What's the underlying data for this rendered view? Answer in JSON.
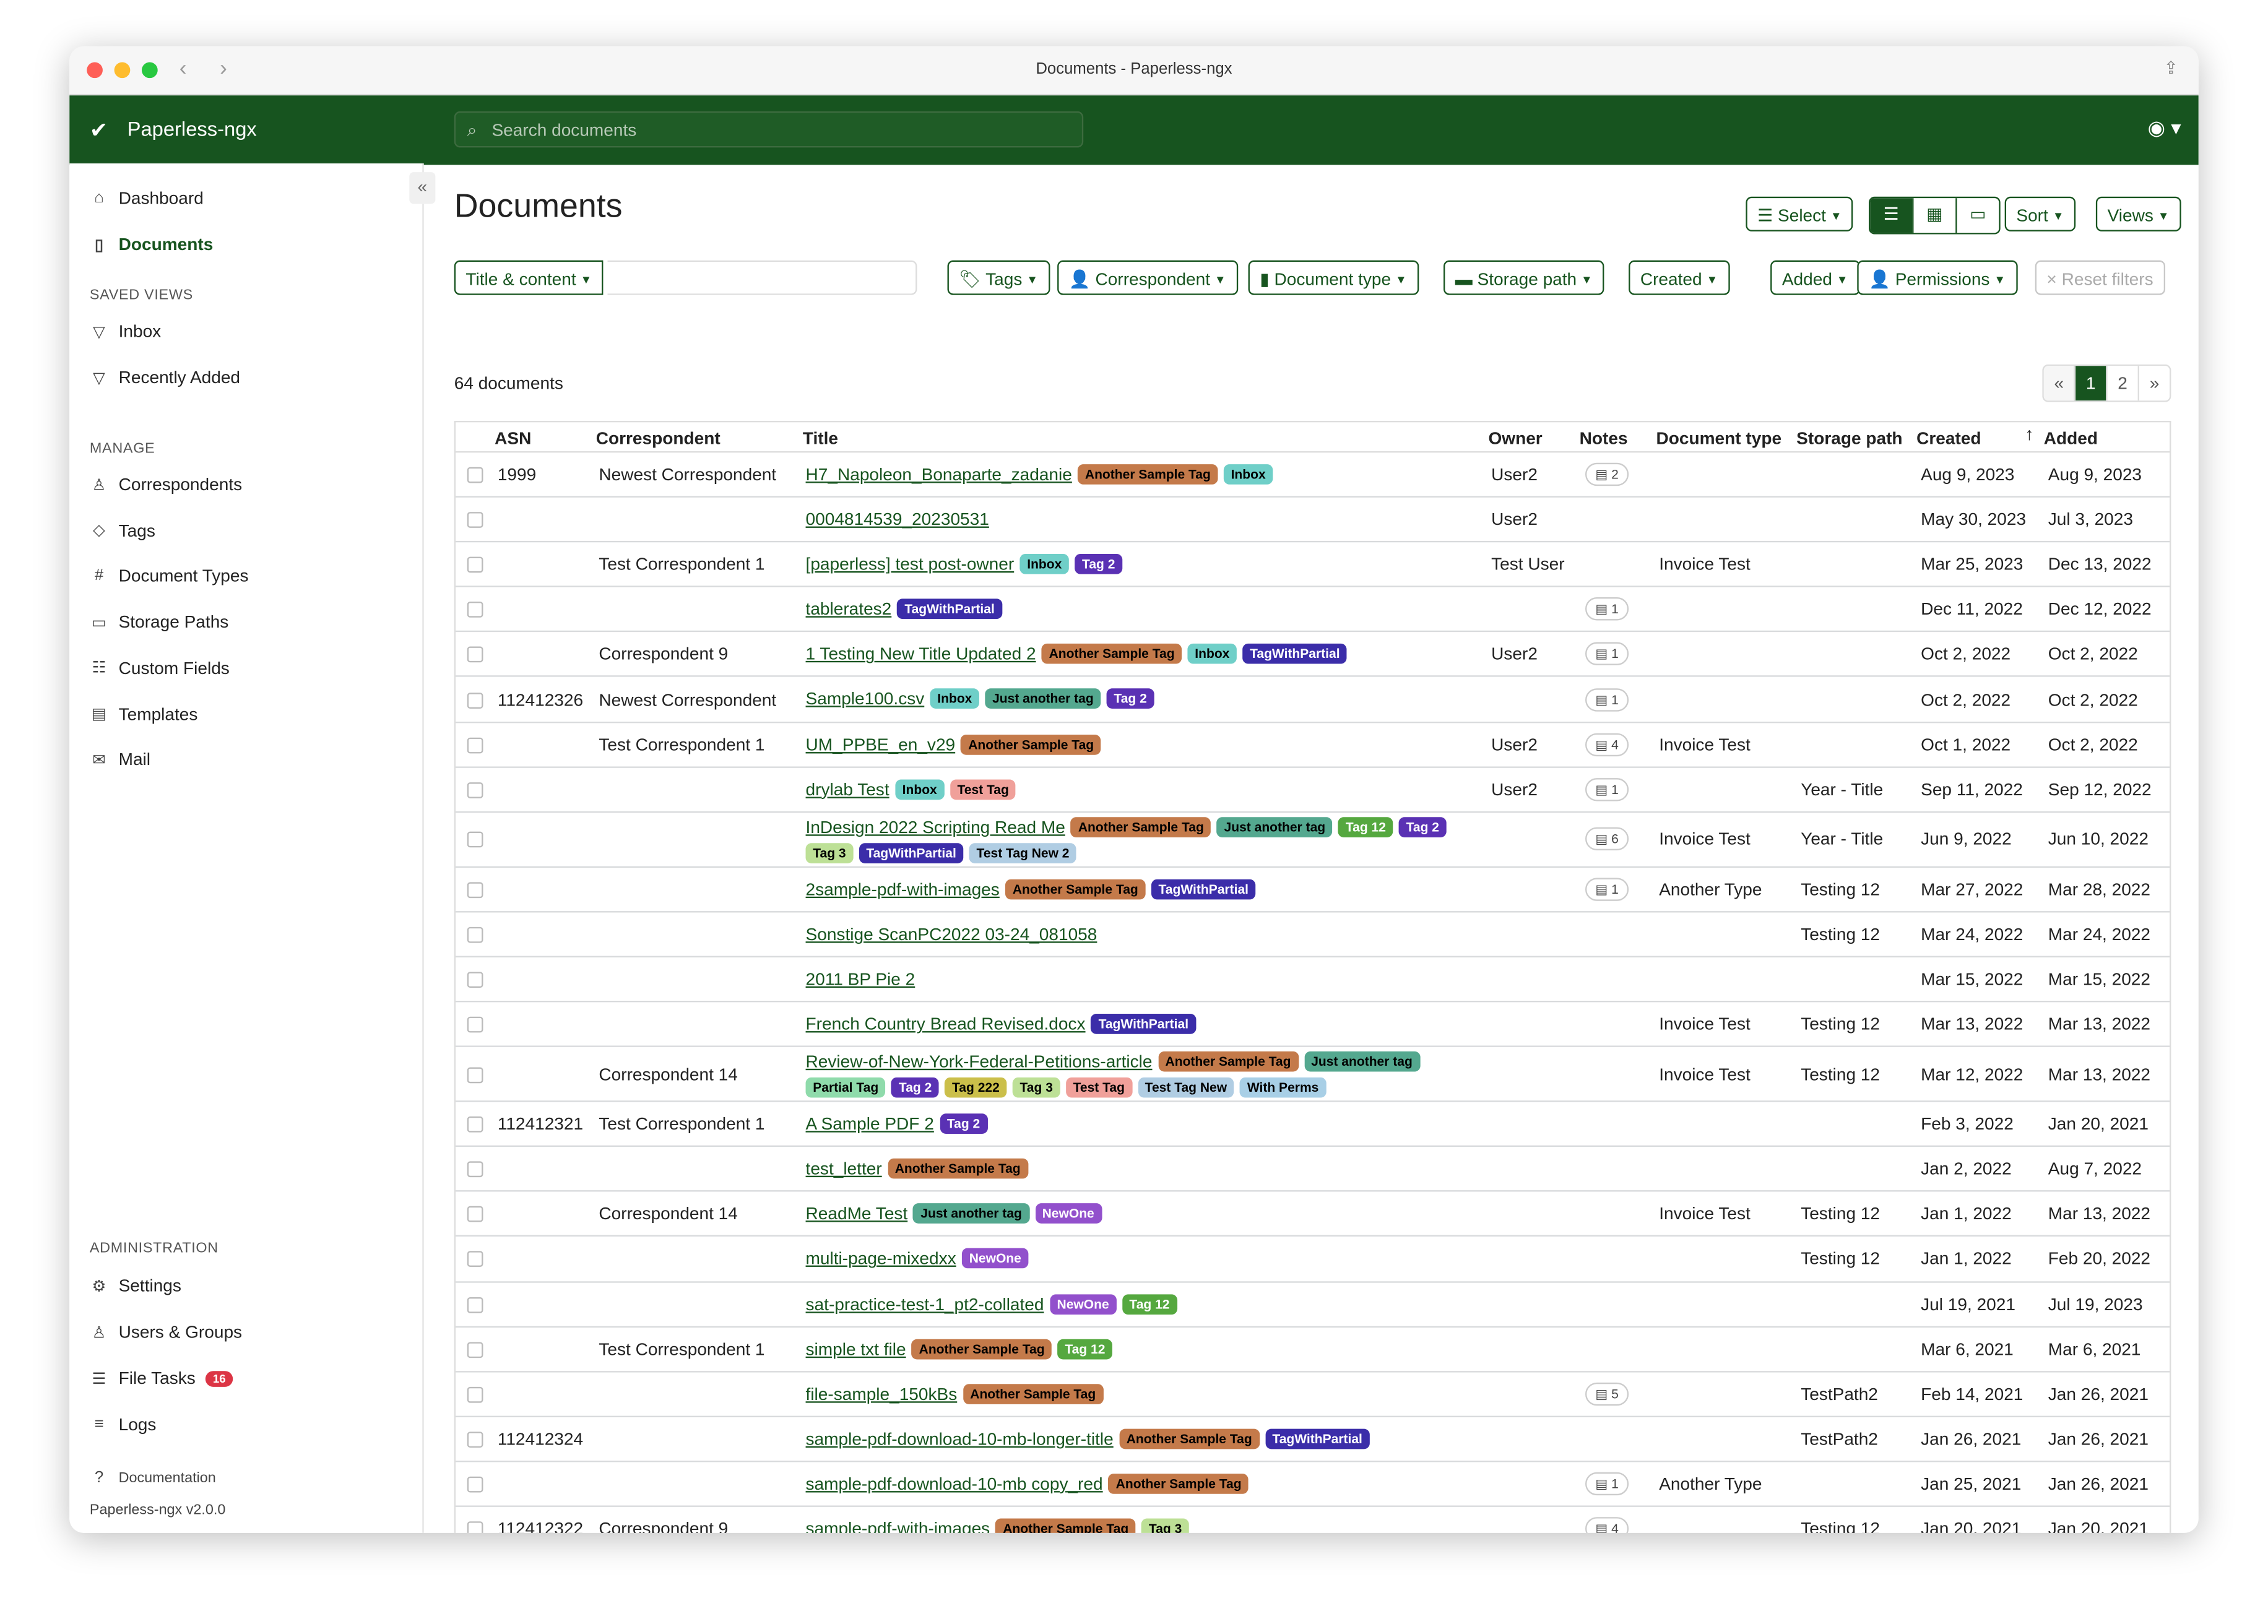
{
  "window": {
    "title": "Documents - Paperless-ngx"
  },
  "header": {
    "brand": "Paperless-ngx",
    "search_placeholder": "Search documents"
  },
  "colors": {
    "brand": "#17541f"
  },
  "sidebar": {
    "main": [
      {
        "label": "Dashboard",
        "icon": "house-icon"
      },
      {
        "label": "Documents",
        "icon": "file-icon"
      }
    ],
    "saved_views_heading": "SAVED VIEWS",
    "saved_views": [
      {
        "label": "Inbox",
        "icon": "funnel-icon"
      },
      {
        "label": "Recently Added",
        "icon": "funnel-icon"
      }
    ],
    "manage_heading": "MANAGE",
    "manage": [
      {
        "label": "Correspondents",
        "icon": "person-icon"
      },
      {
        "label": "Tags",
        "icon": "tag-icon"
      },
      {
        "label": "Document Types",
        "icon": "hash-icon"
      },
      {
        "label": "Storage Paths",
        "icon": "folder-icon"
      },
      {
        "label": "Custom Fields",
        "icon": "ui-radios-icon"
      },
      {
        "label": "Templates",
        "icon": "file-text-icon"
      },
      {
        "label": "Mail",
        "icon": "envelope-icon"
      }
    ],
    "admin_heading": "ADMINISTRATION",
    "admin": [
      {
        "label": "Settings",
        "icon": "gear-icon"
      },
      {
        "label": "Users & Groups",
        "icon": "people-icon"
      },
      {
        "label": "File Tasks",
        "icon": "list-icon",
        "badge": "16"
      },
      {
        "label": "Logs",
        "icon": "text-icon"
      }
    ],
    "documentation": "Documentation",
    "version": "Paperless-ngx v2.0.0"
  },
  "page": {
    "title": "Documents",
    "count": "64 documents"
  },
  "toolbar": {
    "select": "Select",
    "sort": "Sort",
    "views": "Views"
  },
  "filters": {
    "title_content": "Title & content",
    "tags": "Tags",
    "correspondent": "Correspondent",
    "document_type": "Document type",
    "storage_path": "Storage path",
    "created": "Created",
    "added": "Added",
    "permissions": "Permissions",
    "reset": "Reset filters"
  },
  "pagination": {
    "prev": "«",
    "pages": [
      "1",
      "2"
    ],
    "current": "1",
    "next": "»"
  },
  "table": {
    "columns": {
      "asn": "ASN",
      "correspondent": "Correspondent",
      "title": "Title",
      "owner": "Owner",
      "notes": "Notes",
      "document_type": "Document type",
      "storage_path": "Storage path",
      "created": "Created",
      "added": "Added"
    },
    "sort_column": "Added",
    "tag_colors": {
      "Another Sample Tag": [
        "#c47a4a",
        "#000"
      ],
      "Inbox": [
        "#6fcfc8",
        "#000"
      ],
      "Tag 2": [
        "#5a31b4",
        "#fff"
      ],
      "TagWithPartial": [
        "#3b2da9",
        "#fff"
      ],
      "Just another tag": [
        "#54a88f",
        "#000"
      ],
      "Test Tag": [
        "#f0a09a",
        "#000"
      ],
      "Tag 12": [
        "#55a83f",
        "#fff"
      ],
      "Tag 3": [
        "#bde096",
        "#000"
      ],
      "Test Tag New 2": [
        "#b0cde3",
        "#000"
      ],
      "Partial Tag": [
        "#8fdbab",
        "#000"
      ],
      "Tag 222": [
        "#cbbf4a",
        "#000"
      ],
      "Test Tag New": [
        "#b0cde3",
        "#000"
      ],
      "With Perms": [
        "#a8cfe6",
        "#000"
      ],
      "NewOne": [
        "#9250cc",
        "#fff"
      ]
    },
    "rows": [
      {
        "asn": "1999",
        "correspondent": "Newest Correspondent",
        "title": "H7_Napoleon_Bonaparte_zadanie",
        "tags": [
          "Another Sample Tag",
          "Inbox"
        ],
        "owner": "User2",
        "notes": "2",
        "document_type": "",
        "storage_path": "",
        "created": "Aug 9, 2023",
        "added": "Aug 9, 2023"
      },
      {
        "asn": "",
        "correspondent": "",
        "title": "0004814539_20230531",
        "tags": [],
        "owner": "User2",
        "notes": "",
        "document_type": "",
        "storage_path": "",
        "created": "May 30, 2023",
        "added": "Jul 3, 2023"
      },
      {
        "asn": "",
        "correspondent": "Test Correspondent 1",
        "title": "[paperless] test post-owner",
        "tags": [
          "Inbox",
          "Tag 2"
        ],
        "owner": "Test User",
        "notes": "",
        "document_type": "Invoice Test",
        "storage_path": "",
        "created": "Mar 25, 2023",
        "added": "Dec 13, 2022"
      },
      {
        "asn": "",
        "correspondent": "",
        "title": "tablerates2",
        "tags": [
          "TagWithPartial"
        ],
        "owner": "",
        "notes": "1",
        "document_type": "",
        "storage_path": "",
        "created": "Dec 11, 2022",
        "added": "Dec 12, 2022"
      },
      {
        "asn": "",
        "correspondent": "Correspondent 9",
        "title": "1 Testing New Title Updated 2",
        "tags": [
          "Another Sample Tag",
          "Inbox",
          "TagWithPartial"
        ],
        "owner": "User2",
        "notes": "1",
        "document_type": "",
        "storage_path": "",
        "created": "Oct 2, 2022",
        "added": "Oct 2, 2022"
      },
      {
        "asn": "112412326",
        "correspondent": "Newest Correspondent",
        "title": "Sample100.csv",
        "tags": [
          "Inbox",
          "Just another tag",
          "Tag 2"
        ],
        "owner": "",
        "notes": "1",
        "document_type": "",
        "storage_path": "",
        "created": "Oct 2, 2022",
        "added": "Oct 2, 2022"
      },
      {
        "asn": "",
        "correspondent": "Test Correspondent 1",
        "title": "UM_PPBE_en_v29",
        "tags": [
          "Another Sample Tag"
        ],
        "owner": "User2",
        "notes": "4",
        "document_type": "Invoice Test",
        "storage_path": "",
        "created": "Oct 1, 2022",
        "added": "Oct 2, 2022"
      },
      {
        "asn": "",
        "correspondent": "",
        "title": "drylab Test",
        "tags": [
          "Inbox",
          "Test Tag"
        ],
        "owner": "User2",
        "notes": "1",
        "document_type": "",
        "storage_path": "Year - Title",
        "created": "Sep 11, 2022",
        "added": "Sep 12, 2022"
      },
      {
        "asn": "",
        "correspondent": "",
        "title": "InDesign 2022 Scripting Read Me",
        "tags": [
          "Another Sample Tag",
          "Just another tag",
          "Tag 12",
          "Tag 2"
        ],
        "tags2": [
          "Tag 3",
          "TagWithPartial",
          "Test Tag New 2"
        ],
        "owner": "",
        "notes": "6",
        "document_type": "Invoice Test",
        "storage_path": "Year - Title",
        "created": "Jun 9, 2022",
        "added": "Jun 10, 2022"
      },
      {
        "asn": "",
        "correspondent": "",
        "title": "2sample-pdf-with-images",
        "tags": [
          "Another Sample Tag",
          "TagWithPartial"
        ],
        "owner": "",
        "notes": "1",
        "document_type": "Another Type",
        "storage_path": "Testing 12",
        "created": "Mar 27, 2022",
        "added": "Mar 28, 2022"
      },
      {
        "asn": "",
        "correspondent": "",
        "title": "Sonstige ScanPC2022 03-24_081058",
        "tags": [],
        "owner": "",
        "notes": "",
        "document_type": "",
        "storage_path": "Testing 12",
        "created": "Mar 24, 2022",
        "added": "Mar 24, 2022"
      },
      {
        "asn": "",
        "correspondent": "",
        "title": "2011 BP Pie 2",
        "tags": [],
        "owner": "",
        "notes": "",
        "document_type": "",
        "storage_path": "",
        "created": "Mar 15, 2022",
        "added": "Mar 15, 2022"
      },
      {
        "asn": "",
        "correspondent": "",
        "title": "French Country Bread Revised.docx",
        "tags": [
          "TagWithPartial"
        ],
        "owner": "",
        "notes": "",
        "document_type": "Invoice Test",
        "storage_path": "Testing 12",
        "created": "Mar 13, 2022",
        "added": "Mar 13, 2022"
      },
      {
        "asn": "",
        "correspondent": "Correspondent 14",
        "title": "Review-of-New-York-Federal-Petitions-article",
        "tags": [
          "Another Sample Tag",
          "Just another tag"
        ],
        "tags2": [
          "Partial Tag",
          "Tag 2",
          "Tag 222",
          "Tag 3",
          "Test Tag",
          "Test Tag New",
          "With Perms"
        ],
        "owner": "",
        "notes": "",
        "document_type": "Invoice Test",
        "storage_path": "Testing 12",
        "created": "Mar 12, 2022",
        "added": "Mar 13, 2022"
      },
      {
        "asn": "112412321",
        "correspondent": "Test Correspondent 1",
        "title": "A Sample PDF 2",
        "tags": [
          "Tag 2"
        ],
        "owner": "",
        "notes": "",
        "document_type": "",
        "storage_path": "",
        "created": "Feb 3, 2022",
        "added": "Jan 20, 2021"
      },
      {
        "asn": "",
        "correspondent": "",
        "title": "test_letter",
        "tags": [
          "Another Sample Tag"
        ],
        "owner": "",
        "notes": "",
        "document_type": "",
        "storage_path": "",
        "created": "Jan 2, 2022",
        "added": "Aug 7, 2022"
      },
      {
        "asn": "",
        "correspondent": "Correspondent 14",
        "title": "ReadMe Test",
        "tags": [
          "Just another tag",
          "NewOne"
        ],
        "owner": "",
        "notes": "",
        "document_type": "Invoice Test",
        "storage_path": "Testing 12",
        "created": "Jan 1, 2022",
        "added": "Mar 13, 2022"
      },
      {
        "asn": "",
        "correspondent": "",
        "title": "multi-page-mixedxx",
        "tags": [
          "NewOne"
        ],
        "owner": "",
        "notes": "",
        "document_type": "",
        "storage_path": "Testing 12",
        "created": "Jan 1, 2022",
        "added": "Feb 20, 2022"
      },
      {
        "asn": "",
        "correspondent": "",
        "title": "sat-practice-test-1_pt2-collated",
        "tags": [
          "NewOne",
          "Tag 12"
        ],
        "owner": "",
        "notes": "",
        "document_type": "",
        "storage_path": "",
        "created": "Jul 19, 2021",
        "added": "Jul 19, 2023"
      },
      {
        "asn": "",
        "correspondent": "Test Correspondent 1",
        "title": "simple txt file",
        "tags": [
          "Another Sample Tag",
          "Tag 12"
        ],
        "owner": "",
        "notes": "",
        "document_type": "",
        "storage_path": "",
        "created": "Mar 6, 2021",
        "added": "Mar 6, 2021"
      },
      {
        "asn": "",
        "correspondent": "",
        "title": "file-sample_150kBs",
        "tags": [
          "Another Sample Tag"
        ],
        "owner": "",
        "notes": "5",
        "document_type": "",
        "storage_path": "TestPath2",
        "created": "Feb 14, 2021",
        "added": "Jan 26, 2021"
      },
      {
        "asn": "112412324",
        "correspondent": "",
        "title": "sample-pdf-download-10-mb-longer-title",
        "tags": [
          "Another Sample Tag",
          "TagWithPartial"
        ],
        "owner": "",
        "notes": "",
        "document_type": "",
        "storage_path": "TestPath2",
        "created": "Jan 26, 2021",
        "added": "Jan 26, 2021"
      },
      {
        "asn": "",
        "correspondent": "",
        "title": "sample-pdf-download-10-mb copy_red",
        "tags": [
          "Another Sample Tag"
        ],
        "owner": "",
        "notes": "1",
        "document_type": "Another Type",
        "storage_path": "",
        "created": "Jan 25, 2021",
        "added": "Jan 26, 2021"
      },
      {
        "asn": "112412322",
        "correspondent": "Correspondent 9",
        "title": "sample-pdf-with-images",
        "tags": [
          "Another Sample Tag",
          "Tag 3"
        ],
        "owner": "",
        "notes": "4",
        "document_type": "",
        "storage_path": "Testing 12",
        "created": "Jan 20, 2021",
        "added": "Jan 20, 2021"
      }
    ]
  }
}
